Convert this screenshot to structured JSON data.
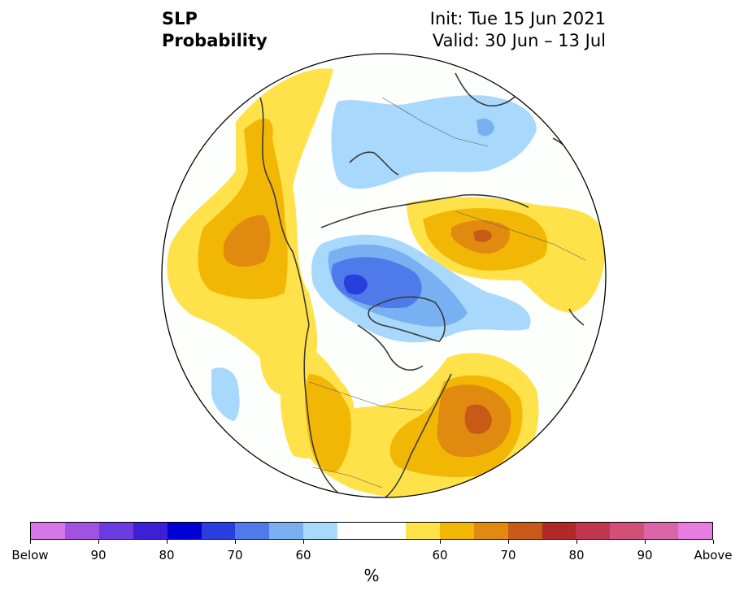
{
  "title": {
    "left_line1": "SLP",
    "left_line2": "Probability",
    "right_line1": "Init: Tue 15 Jun 2021",
    "right_line2": "Valid: 30 Jun – 13 Jul"
  },
  "colorbar": {
    "unit": "%",
    "colors": [
      "#d575e8",
      "#a052e0",
      "#6b3ce0",
      "#3d1fd6",
      "#0000d6",
      "#2a3ee0",
      "#4f7aea",
      "#79b0f2",
      "#a8d8fb",
      "#ffffff",
      "#ffe24a",
      "#f2b705",
      "#e08b10",
      "#c85a18",
      "#b02828",
      "#c03650",
      "#d25077",
      "#dc65a8",
      "#e77de0"
    ],
    "labels": [
      "Below",
      "90",
      "80",
      "70",
      "60",
      "60",
      "70",
      "80",
      "90",
      "Above"
    ]
  },
  "legend_colors": {
    "above_light": "#ffe24a",
    "above_mid": "#f2b705",
    "above_dark": "#e08b10",
    "above_darker": "#c85a18",
    "below_light": "#a8d8fb",
    "below_mid": "#79b0f2",
    "below_dark": "#4f7aea",
    "below_darker": "#2a3ee0",
    "land_outline": "#3a3a3a"
  }
}
